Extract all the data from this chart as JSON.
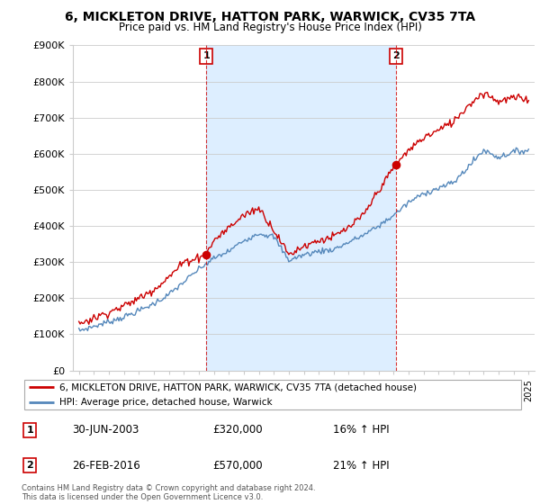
{
  "title": "6, MICKLETON DRIVE, HATTON PARK, WARWICK, CV35 7TA",
  "subtitle": "Price paid vs. HM Land Registry's House Price Index (HPI)",
  "ylim": [
    0,
    900000
  ],
  "yticks": [
    0,
    100000,
    200000,
    300000,
    400000,
    500000,
    600000,
    700000,
    800000,
    900000
  ],
  "ytick_labels": [
    "£0",
    "£100K",
    "£200K",
    "£300K",
    "£400K",
    "£500K",
    "£600K",
    "£700K",
    "£800K",
    "£900K"
  ],
  "sale1_yr": 2003.5,
  "sale1_price": 320000,
  "sale2_yr": 2016.17,
  "sale2_price": 570000,
  "line_color_property": "#cc0000",
  "line_color_hpi": "#5588bb",
  "shade_color": "#ddeeff",
  "vline_color": "#cc0000",
  "background_color": "#ffffff",
  "grid_color": "#cccccc",
  "legend_label_property": "6, MICKLETON DRIVE, HATTON PARK, WARWICK, CV35 7TA (detached house)",
  "legend_label_hpi": "HPI: Average price, detached house, Warwick",
  "annotation1_date": "30-JUN-2003",
  "annotation1_price": "£320,000",
  "annotation1_hpi": "16% ↑ HPI",
  "annotation2_date": "26-FEB-2016",
  "annotation2_price": "£570,000",
  "annotation2_hpi": "21% ↑ HPI",
  "footer": "Contains HM Land Registry data © Crown copyright and database right 2024.\nThis data is licensed under the Open Government Licence v3.0.",
  "hpi_control": {
    "years": [
      1995,
      1996,
      1997,
      1998,
      1999,
      2000,
      2001,
      2002,
      2003,
      2004,
      2005,
      2006,
      2007,
      2008,
      2009,
      2010,
      2011,
      2012,
      2013,
      2014,
      2015,
      2016,
      2017,
      2018,
      2019,
      2020,
      2021,
      2022,
      2023,
      2024,
      2025
    ],
    "values": [
      110000,
      122000,
      135000,
      148000,
      165000,
      185000,
      210000,
      245000,
      280000,
      310000,
      330000,
      360000,
      380000,
      370000,
      305000,
      320000,
      330000,
      335000,
      355000,
      375000,
      400000,
      430000,
      465000,
      490000,
      505000,
      520000,
      565000,
      610000,
      590000,
      605000,
      610000
    ]
  },
  "prop_control": {
    "years": [
      1995,
      1996,
      1997,
      1998,
      1999,
      2000,
      2001,
      2002,
      2003.5,
      2004,
      2005,
      2006,
      2007,
      2008,
      2009,
      2010,
      2011,
      2012,
      2013,
      2014,
      2015,
      2016.17,
      2017,
      2018,
      2019,
      2020,
      2021,
      2022,
      2023,
      2024,
      2025
    ],
    "values": [
      130000,
      145000,
      162000,
      178000,
      200000,
      225000,
      258000,
      300000,
      320000,
      360000,
      395000,
      430000,
      450000,
      390000,
      320000,
      345000,
      360000,
      370000,
      395000,
      430000,
      500000,
      570000,
      610000,
      645000,
      665000,
      690000,
      735000,
      770000,
      745000,
      755000,
      750000
    ]
  }
}
